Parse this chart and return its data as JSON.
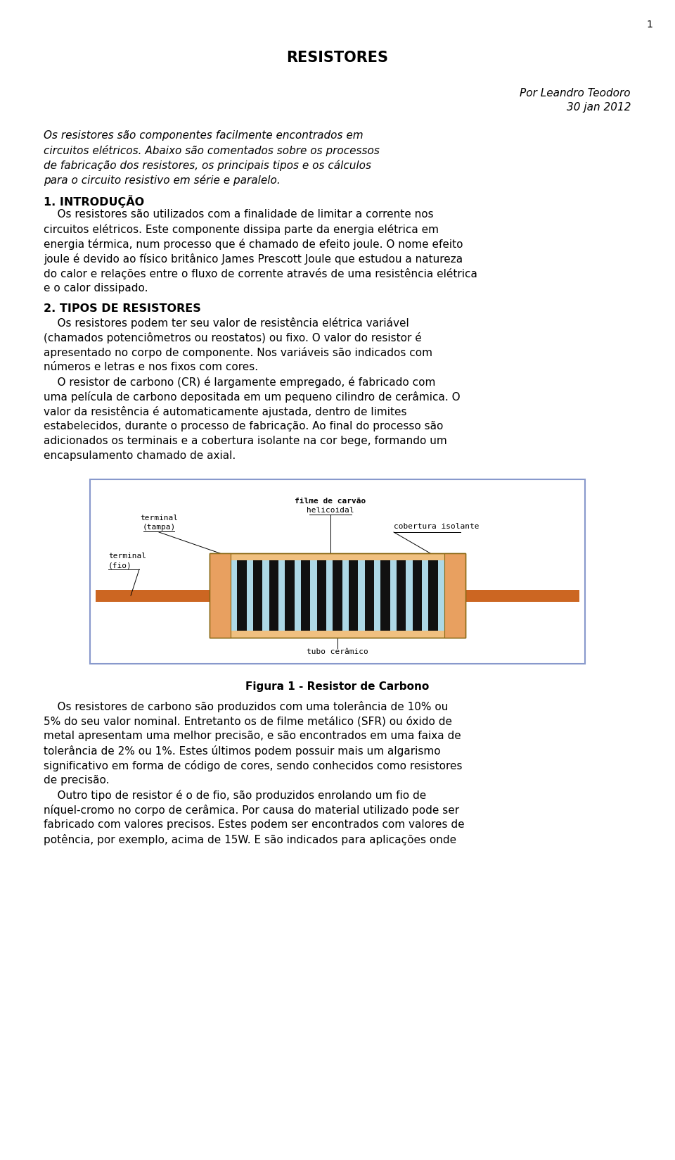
{
  "title": "RESISTORES",
  "page_num": "1",
  "author": "Por Leandro Teodoro",
  "date": "30 jan 2012",
  "bg_color": "#ffffff",
  "text_color": "#000000",
  "border_color": "#8899cc",
  "resistor_ceramic_color": "#add8e6",
  "resistor_stripe_color": "#111111",
  "resistor_wire_color": "#cc6622",
  "resistor_cap_color": "#e8a060",
  "resistor_body_color": "#f0c080",
  "resistor_body_outline": "#8b6914",
  "ann_line_color": "#000000",
  "abstract_lines": [
    "Os resistores são componentes facilmente encontrados em",
    "circuitos elétricos. Abaixo são comentados sobre os processos",
    "de fabricação dos resistores, os principais tipos e os cálculos",
    "para o circuito resistivo em série e paralelo."
  ],
  "s1_title": "1. INTRODUÇÃO",
  "s1_lines": [
    "    Os resistores são utilizados com a finalidade de limitar a corrente nos",
    "circuitos elétricos. Este componente dissipa parte da energia elétrica em",
    "energia térmica, num processo que é chamado de efeito joule. O nome efeito",
    "joule é devido ao físico britânico James Prescott Joule que estudou a natureza",
    "do calor e relações entre o fluxo de corrente através de uma resistência elétrica",
    "e o calor dissipado."
  ],
  "s2_title": "2. TIPOS DE RESISTORES",
  "s2_lines1": [
    "    Os resistores podem ter seu valor de resistência elétrica variável",
    "(chamados potenciômetros ou reostatos) ou fixo. O valor do resistor é",
    "apresentado no corpo de componente. Nos variáveis são indicados com",
    "números e letras e nos fixos com cores."
  ],
  "s2_lines2": [
    "    O resistor de carbono (CR) é largamente empregado, é fabricado com",
    "uma película de carbono depositada em um pequeno cilindro de cerâmica. O",
    "valor da resistência é automaticamente ajustada, dentro de limites",
    "estabelecidos, durante o processo de fabricação. Ao final do processo são",
    "adicionados os terminais e a cobertura isolante na cor bege, formando um",
    "encapsulamento chamado de axial."
  ],
  "fig_caption": "Figura 1 - Resistor de Carbono",
  "s2_lines3": [
    "    Os resistores de carbono são produzidos com uma tolerância de 10% ou",
    "5% do seu valor nominal. Entretanto os de filme metálico (SFR) ou óxido de",
    "metal apresentam uma melhor precisão, e são encontrados em uma faixa de",
    "tolerância de 2% ou 1%. Estes últimos podem possuir mais um algarismo",
    "significativo em forma de código de cores, sendo conhecidos como resistores",
    "de precisão."
  ],
  "s2_lines4": [
    "    Outro tipo de resistor é o de fio, são produzidos enrolando um fio de",
    "níquel-cromo no corpo de cerâmica. Por causa do material utilizado pode ser",
    "fabricado com valores precisos. Estes podem ser encontrados com valores de",
    "potência, por exemplo, acima de 15W. E são indicados para aplicações onde"
  ]
}
